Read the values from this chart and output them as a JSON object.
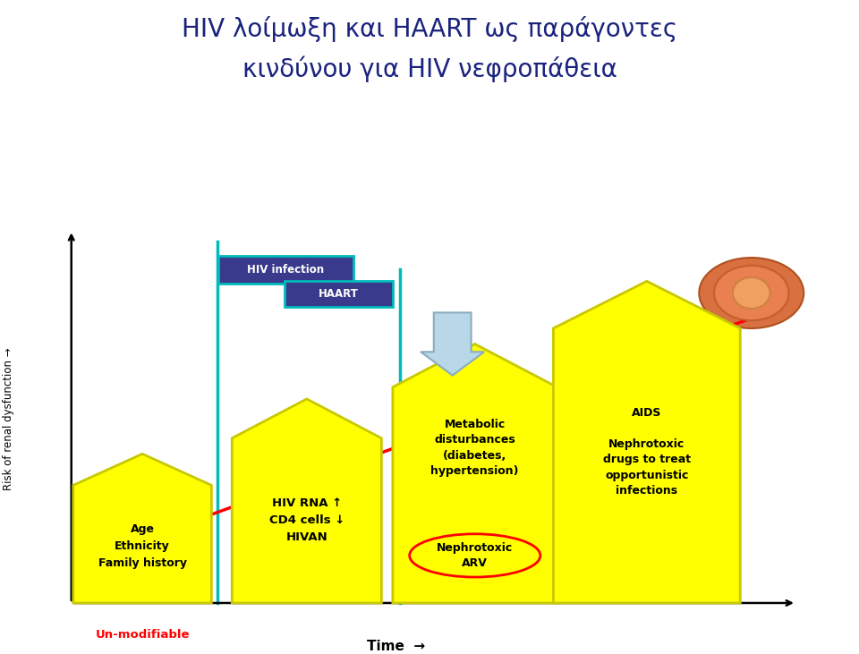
{
  "title_line1": "HIV λοίμωξη και HAART ως παράγοντες",
  "title_line2": "κινδύνου για HIV νεφροπάθεια",
  "ylabel": "Risk of renal dysfunction",
  "xlabel_text": "Time",
  "unmodifiable_label": "Un-modifiable",
  "hiv_infection_label": "HIV infection",
  "haart_label": "HAART",
  "arrow1_text": "Age\nEthnicity\nFamily history",
  "arrow2_text": "HIV RNA ↑\nCD4 cells ↓\nHIVAN",
  "arrow3_top_text": "Metabolic\ndisturbances\n(diabetes,\nhypertension)",
  "arrow3_bot_text": "Nephrotoxic\nARV",
  "arrow4_text": "AIDS\n\nNephrotoxic\ndrugs to treat\nopportunistic\ninfections",
  "yellow": "#FFFF00",
  "yellow_edge": "#C8C800",
  "cyan_line": "#00BBBB",
  "title_color": "#1a237e",
  "red_color": "#FF0000",
  "unmod_color": "#FF0000",
  "box_bg": "#3a3a8c",
  "box_edge": "#00BBBB",
  "down_arrow_fill": "#b8d8e8",
  "down_arrow_edge": "#8aacbe"
}
